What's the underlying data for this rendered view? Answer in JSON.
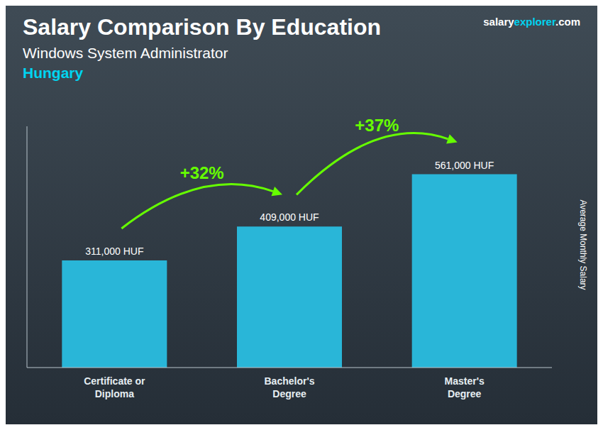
{
  "chart_data": {
    "type": "bar",
    "title": "Salary Comparison By Education",
    "subtitle": "Windows System Administrator",
    "country": {
      "text": "Hungary",
      "color": "#00d4f0"
    },
    "source": [
      {
        "text": "salary",
        "color": "#ffffff"
      },
      {
        "text": "explorer",
        "color": "#00d4f0"
      },
      {
        "text": ".com",
        "color": "#ffffff"
      }
    ],
    "ylabel": "Average Monthly Salary",
    "categories": [
      "Certificate or\nDiploma",
      "Bachelor's\nDegree",
      "Master's\nDegree"
    ],
    "values": [
      311000,
      409000,
      561000
    ],
    "value_labels": [
      "311,000 HUF",
      "409,000 HUF",
      "561,000 HUF"
    ],
    "data_labels": true,
    "color": "#29b6d8",
    "ylim": [
      0,
      700000
    ],
    "grid": false,
    "tick_labels": false,
    "annotations": [
      {
        "text": "+32%",
        "color": "#66ff00"
      },
      {
        "text": "+37%",
        "color": "#66ff00"
      }
    ]
  }
}
